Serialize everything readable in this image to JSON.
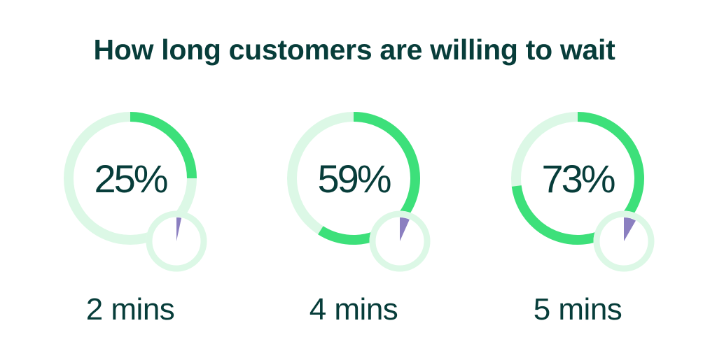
{
  "title": "How long customers are willing to wait",
  "colors": {
    "title": "#073d3a",
    "text": "#073d3a",
    "ring_track": "#dcf8e6",
    "ring_fill": "#3de07a",
    "clock_ring": "#dcf8e6",
    "clock_wedge": "#8b7fc0"
  },
  "chart_data": {
    "type": "pie",
    "title": "How long customers are willing to wait",
    "categories": [
      "2 mins",
      "4 mins",
      "5 mins"
    ],
    "values": [
      25,
      59,
      73
    ],
    "value_labels": [
      "25%",
      "59%",
      "73%"
    ],
    "unit": "%",
    "clock_minutes": [
      2,
      4,
      5
    ],
    "clock_minutes_full": 60
  }
}
